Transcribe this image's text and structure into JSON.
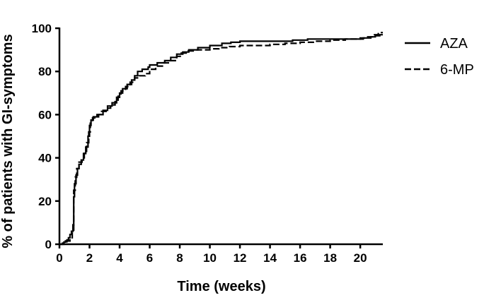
{
  "chart_data": {
    "type": "line",
    "title": "",
    "xlabel": "Time (weeks)",
    "ylabel": "% of patients with GI-symptoms",
    "xlim": [
      0,
      21.5
    ],
    "ylim": [
      0,
      100
    ],
    "x_ticks": [
      0,
      2,
      4,
      6,
      8,
      10,
      12,
      14,
      16,
      18,
      20
    ],
    "y_ticks": [
      0,
      20,
      40,
      60,
      80,
      100
    ],
    "grid": false,
    "legend_position": "top-right",
    "step": true,
    "series": [
      {
        "name": "AZA",
        "line_style": "solid",
        "color": "#000000",
        "points": [
          [
            0,
            0
          ],
          [
            0.2,
            0.5
          ],
          [
            0.3,
            1.0
          ],
          [
            0.4,
            1.5
          ],
          [
            0.5,
            2.0
          ],
          [
            0.6,
            3.0
          ],
          [
            0.7,
            4.5
          ],
          [
            0.8,
            6.0
          ],
          [
            0.9,
            9.0
          ],
          [
            0.95,
            22.0
          ],
          [
            1.0,
            28.0
          ],
          [
            1.1,
            32.0
          ],
          [
            1.2,
            35.0
          ],
          [
            1.3,
            37.0
          ],
          [
            1.45,
            39.0
          ],
          [
            1.6,
            42.0
          ],
          [
            1.75,
            45.0
          ],
          [
            1.9,
            50.0
          ],
          [
            2.0,
            55.0
          ],
          [
            2.1,
            57.5
          ],
          [
            2.25,
            59.0
          ],
          [
            2.6,
            60.0
          ],
          [
            2.9,
            62.0
          ],
          [
            3.2,
            64.0
          ],
          [
            3.5,
            65.5
          ],
          [
            3.8,
            68.0
          ],
          [
            4.0,
            70.0
          ],
          [
            4.2,
            72.0
          ],
          [
            4.5,
            74.0
          ],
          [
            4.8,
            76.0
          ],
          [
            5.0,
            78.0
          ],
          [
            5.2,
            80.0
          ],
          [
            5.5,
            81.0
          ],
          [
            5.9,
            82.0
          ],
          [
            6.0,
            83.0
          ],
          [
            6.5,
            84.0
          ],
          [
            7.0,
            85.0
          ],
          [
            7.4,
            86.5
          ],
          [
            7.8,
            88.0
          ],
          [
            8.2,
            89.0
          ],
          [
            8.6,
            90.0
          ],
          [
            9.2,
            91.0
          ],
          [
            10.0,
            92.0
          ],
          [
            10.8,
            93.0
          ],
          [
            11.4,
            93.5
          ],
          [
            12.0,
            94.0
          ],
          [
            14.0,
            94.0
          ],
          [
            15.5,
            94.5
          ],
          [
            16.5,
            95.0
          ],
          [
            19.5,
            95.0
          ],
          [
            20.2,
            95.5
          ],
          [
            20.7,
            96.0
          ],
          [
            21.0,
            96.5
          ],
          [
            21.3,
            97.0
          ],
          [
            21.5,
            97.0
          ]
        ]
      },
      {
        "name": "6-MP",
        "line_style": "dashed",
        "color": "#000000",
        "points": [
          [
            0,
            0
          ],
          [
            0.3,
            0.5
          ],
          [
            0.5,
            1.5
          ],
          [
            0.7,
            3.0
          ],
          [
            0.85,
            6.0
          ],
          [
            0.95,
            25.0
          ],
          [
            1.05,
            31.0
          ],
          [
            1.15,
            35.0
          ],
          [
            1.3,
            38.0
          ],
          [
            1.5,
            40.0
          ],
          [
            1.65,
            43.0
          ],
          [
            1.8,
            47.0
          ],
          [
            1.95,
            52.0
          ],
          [
            2.05,
            56.0
          ],
          [
            2.2,
            58.5
          ],
          [
            2.5,
            60.0
          ],
          [
            2.8,
            61.5
          ],
          [
            3.1,
            63.0
          ],
          [
            3.4,
            64.5
          ],
          [
            3.7,
            66.0
          ],
          [
            3.9,
            68.5
          ],
          [
            4.1,
            71.0
          ],
          [
            4.4,
            73.0
          ],
          [
            4.7,
            75.0
          ],
          [
            5.0,
            77.0
          ],
          [
            5.3,
            78.0
          ],
          [
            5.7,
            79.0
          ],
          [
            6.0,
            81.0
          ],
          [
            6.4,
            82.5
          ],
          [
            6.9,
            84.0
          ],
          [
            7.3,
            85.0
          ],
          [
            7.8,
            87.0
          ],
          [
            8.1,
            88.5
          ],
          [
            8.5,
            89.5
          ],
          [
            9.1,
            90.0
          ],
          [
            10.0,
            90.5
          ],
          [
            10.6,
            91.0
          ],
          [
            11.3,
            91.5
          ],
          [
            12.0,
            92.0
          ],
          [
            14.0,
            92.5
          ],
          [
            15.0,
            93.0
          ],
          [
            16.0,
            93.5
          ],
          [
            17.0,
            94.0
          ],
          [
            18.0,
            94.5
          ],
          [
            19.0,
            95.0
          ],
          [
            20.0,
            95.5
          ],
          [
            20.5,
            96.0
          ],
          [
            20.9,
            97.0
          ],
          [
            21.2,
            98.0
          ],
          [
            21.5,
            98.0
          ]
        ]
      }
    ]
  }
}
